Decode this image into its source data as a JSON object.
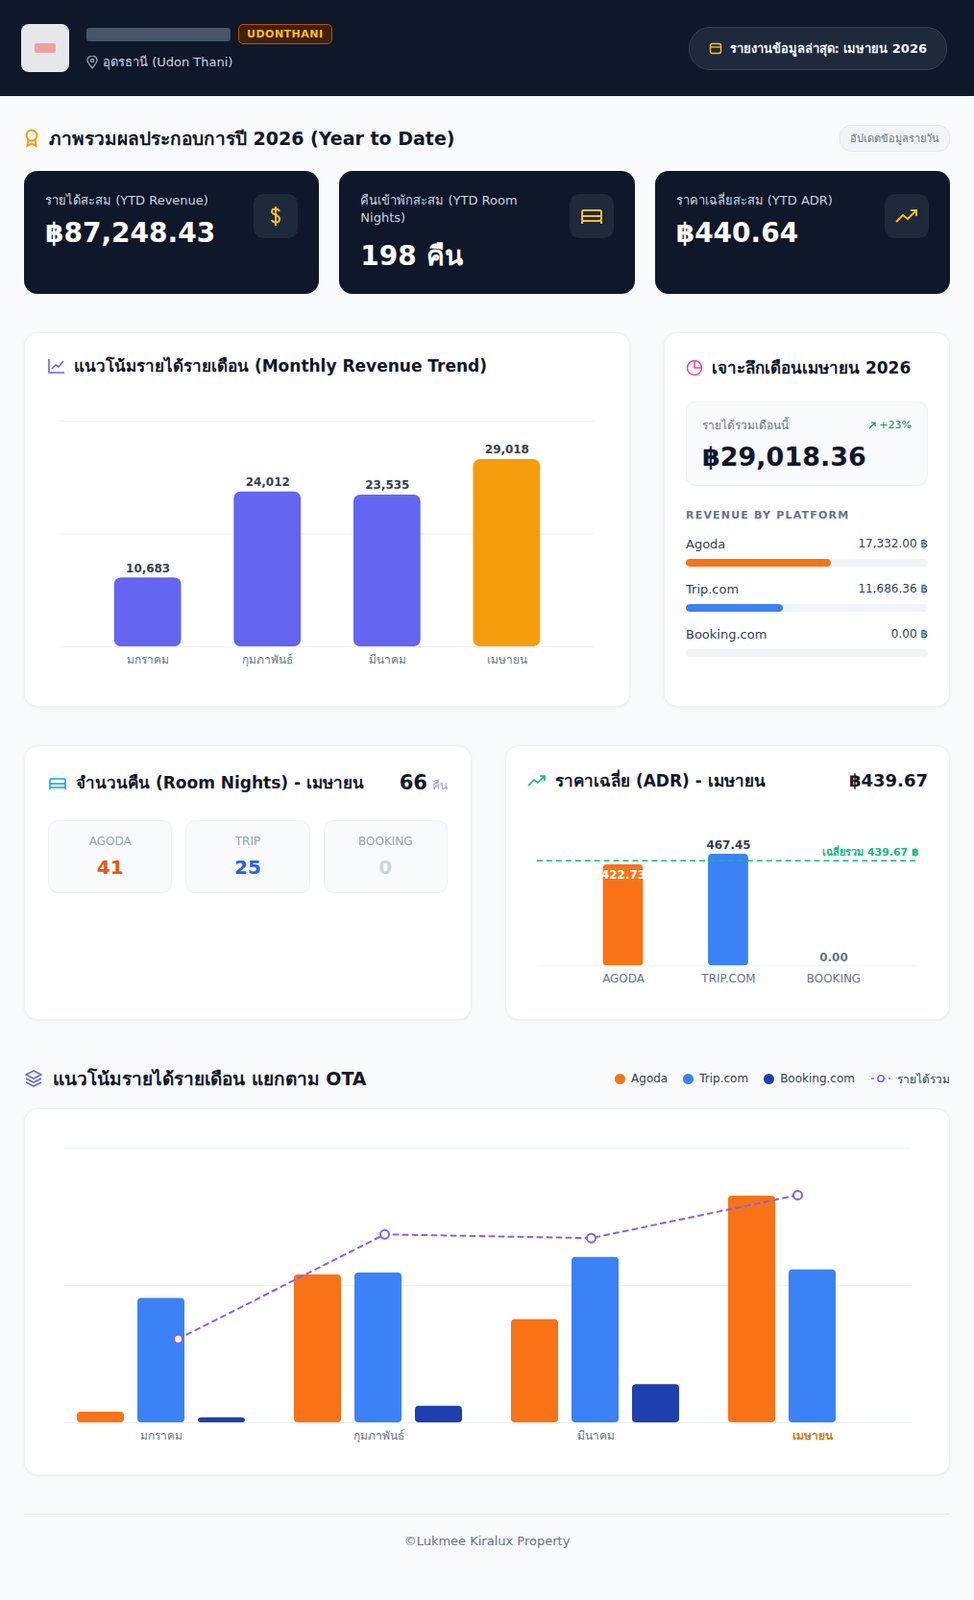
{
  "header": {
    "badge": "UDONTHANI",
    "location": "อุดรธานี (Udon Thani)",
    "report": "รายงานข้อมูลล่าสุด: เมษายน 2026"
  },
  "overview": {
    "title": "ภาพรวมผลประกอบการปี 2026 (Year to Date)",
    "badge": "อัปเดตข้อมูลรายวัน",
    "kpis": [
      {
        "label": "รายได้สะสม (YTD Revenue)",
        "value": "฿87,248.43"
      },
      {
        "label": "คืนเข้าพักสะสม (YTD Room Nights)",
        "value": "198 คืน"
      },
      {
        "label": "ราคาเฉลี่ยสะสม (YTD ADR)",
        "value": "฿440.64"
      }
    ]
  },
  "april_detail": {
    "title": "เจาะลึกเดือนเมษายน 2026",
    "total_title": "รายได้รวมเดือนนี้",
    "total": {
      "value": 29018.36,
      "label": "฿29,018.36"
    },
    "change": "+23%",
    "platform_title": "REVENUE BY PLATFORM",
    "platforms": [
      {
        "name": "Agoda",
        "value": 17332.0,
        "label": "17,332.00 ฿",
        "color": "#f97316"
      },
      {
        "name": "Trip.com",
        "value": 11686.36,
        "label": "11,686.36 ฿",
        "color": "#3b82f6"
      },
      {
        "name": "Booking.com",
        "value": 0,
        "label": "0.00 ฿",
        "color": "#1e40af"
      }
    ]
  },
  "room_nights": {
    "title": "จำนวนคืน (Room Nights) - เมษายน",
    "total": 66,
    "unit": "คืน",
    "items": [
      {
        "name": "AGODA",
        "value": 41,
        "color": "#ea580c"
      },
      {
        "name": "TRIP",
        "value": 25,
        "color": "#2563eb"
      },
      {
        "name": "BOOKING",
        "value": 0,
        "color": "#cbd5e1"
      }
    ]
  },
  "chart_data": [
    {
      "type": "bar",
      "title": "แนวโน้มรายได้รายเดือน (Monthly Revenue Trend)",
      "categories": [
        "มกราคม",
        "กุมภาพันธ์",
        "มีนาคม",
        "เมษายน"
      ],
      "values": [
        10683,
        24012,
        23535,
        29018
      ],
      "value_labels": [
        "10,683",
        "24,012",
        "23,535",
        "29,018"
      ],
      "colors": [
        "#6366f1",
        "#6366f1",
        "#6366f1",
        "#f59e0b"
      ],
      "ylim": [
        0,
        35000
      ],
      "yticks": [
        0,
        17500,
        35000
      ],
      "grid": true,
      "data_labels": true,
      "tick_labels": "x"
    },
    {
      "type": "bar",
      "title": "ราคาเฉลี่ย (ADR) - เมษายน",
      "subtitle": "฿439.67",
      "categories": [
        "AGODA",
        "TRIP.COM",
        "BOOKING"
      ],
      "values": [
        422.73,
        467.45,
        0
      ],
      "value_labels": [
        "422.73",
        "467.45",
        "0.00"
      ],
      "colors": [
        "#f97316",
        "#3b82f6",
        "#1e40af"
      ],
      "reference": {
        "value": 439.67,
        "label": "เฉลี่ยรวม 439.67 ฿",
        "color": "#10b981",
        "line_style": "dashed"
      },
      "ylim": [
        0,
        520
      ],
      "yticks": [
        0
      ],
      "grid": true,
      "data_labels": true,
      "tick_labels": "x"
    },
    {
      "type": "bar",
      "title": "แนวโน้มรายได้รายเดือน แยกตาม OTA",
      "categories": [
        "มกราคม",
        "กุมภาพันธ์",
        "มีนาคม",
        "เมษายน"
      ],
      "series": [
        {
          "name": "Agoda",
          "color": "#f97316",
          "values": [
            800,
            11300,
            7900,
            17332
          ]
        },
        {
          "name": "Trip.com",
          "color": "#3b82f6",
          "values": [
            9500,
            11450,
            12650,
            11686
          ]
        },
        {
          "name": "Booking.com",
          "color": "#1e40af",
          "values": [
            380,
            1260,
            2920,
            0
          ]
        },
        {
          "name": "รายได้รวม",
          "color": "#8b5cf6",
          "type": "line",
          "axis": "y2",
          "marker": "circle",
          "line_style": "dashed",
          "values": [
            10683,
            24012,
            23535,
            29018
          ]
        }
      ],
      "ylim": [
        0,
        21000
      ],
      "yticks": [
        0,
        10500,
        21000
      ],
      "y2lim": [
        0,
        35000
      ],
      "y2ticks": [
        0,
        17500,
        35000
      ],
      "grid": true,
      "legend": "top-right",
      "tick_labels": "x"
    }
  ],
  "footer": "©Lukmee Kiralux Property"
}
